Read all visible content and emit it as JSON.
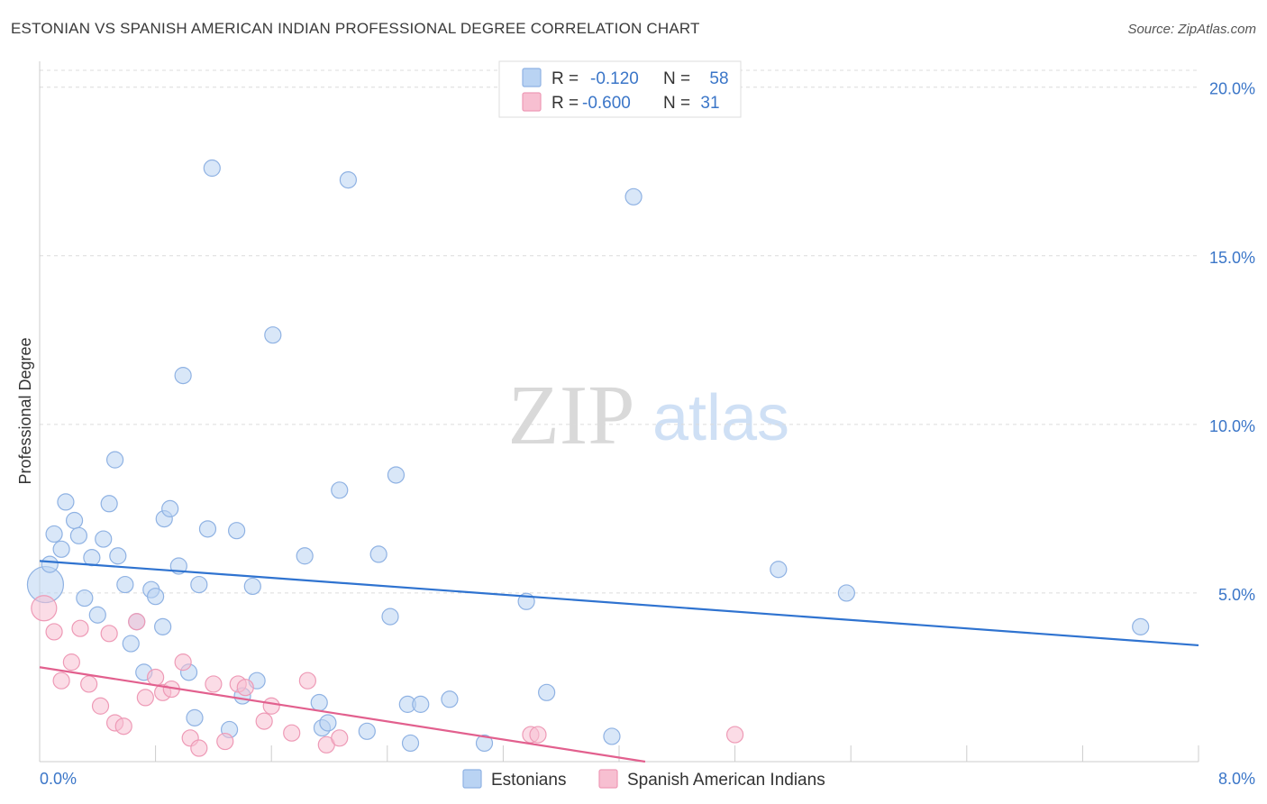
{
  "title": "ESTONIAN VS SPANISH AMERICAN INDIAN PROFESSIONAL DEGREE CORRELATION CHART",
  "source": "Source: ZipAtlas.com",
  "watermark": {
    "zip": "ZIP",
    "atlas": "atlas"
  },
  "colors": {
    "estonians_fill": "#b9d3f3",
    "estonians_stroke": "#8fb2e3",
    "estonians_line": "#2f73d0",
    "spanish_fill": "#f7bfd1",
    "spanish_stroke": "#ee9ab6",
    "spanish_line": "#e2608e",
    "accent": "#3b76c8"
  },
  "legend": {
    "r_label": "R =",
    "n_label": "N =",
    "rows": [
      {
        "r": "-0.120",
        "n": "58"
      },
      {
        "r": "-0.600",
        "n": "31"
      }
    ]
  },
  "chart_data": {
    "type": "scatter",
    "title": "ESTONIAN VS SPANISH AMERICAN INDIAN PROFESSIONAL DEGREE CORRELATION CHART",
    "xlabel": "",
    "ylabel": "Professional Degree",
    "xlim": [
      0,
      8
    ],
    "ylim": [
      0,
      20.5
    ],
    "x_tick_labels": [
      "0.0%",
      "8.0%"
    ],
    "y_ticks": [
      5,
      10,
      15,
      20
    ],
    "y_tick_labels": [
      "5.0%",
      "10.0%",
      "15.0%",
      "20.0%"
    ],
    "grid": true,
    "legend_position": "top-center",
    "series": [
      {
        "name": "Estonians",
        "r": -0.12,
        "n": 58,
        "trend": {
          "x0": 0,
          "y0": 5.95,
          "x1": 8.0,
          "y1": 3.45
        },
        "points": [
          [
            0.04,
            5.25,
            20
          ],
          [
            0.07,
            5.85,
            9
          ],
          [
            0.1,
            6.75,
            9
          ],
          [
            0.15,
            6.3,
            9
          ],
          [
            0.18,
            7.7,
            9
          ],
          [
            0.24,
            7.15,
            9
          ],
          [
            0.27,
            6.7,
            9
          ],
          [
            0.31,
            4.85,
            9
          ],
          [
            0.36,
            6.05,
            9
          ],
          [
            0.4,
            4.35,
            9
          ],
          [
            0.44,
            6.6,
            9
          ],
          [
            0.48,
            7.65,
            9
          ],
          [
            0.52,
            8.95,
            9
          ],
          [
            0.54,
            6.1,
            9
          ],
          [
            0.59,
            5.25,
            9
          ],
          [
            0.63,
            3.5,
            9
          ],
          [
            0.67,
            4.15,
            9
          ],
          [
            0.72,
            2.65,
            9
          ],
          [
            0.77,
            5.1,
            9
          ],
          [
            0.8,
            4.9,
            9
          ],
          [
            0.85,
            4.0,
            9
          ],
          [
            0.86,
            7.2,
            9
          ],
          [
            0.9,
            7.5,
            9
          ],
          [
            0.96,
            5.8,
            9
          ],
          [
            0.99,
            11.45,
            9
          ],
          [
            1.03,
            2.65,
            9
          ],
          [
            1.07,
            1.3,
            9
          ],
          [
            1.1,
            5.25,
            9
          ],
          [
            1.16,
            6.9,
            9
          ],
          [
            1.19,
            17.6,
            9
          ],
          [
            1.31,
            0.95,
            9
          ],
          [
            1.36,
            6.85,
            9
          ],
          [
            1.4,
            1.95,
            9
          ],
          [
            1.47,
            5.2,
            9
          ],
          [
            1.5,
            2.4,
            9
          ],
          [
            1.61,
            12.65,
            9
          ],
          [
            1.83,
            6.1,
            9
          ],
          [
            1.93,
            1.75,
            9
          ],
          [
            1.95,
            1.0,
            9
          ],
          [
            1.99,
            1.15,
            9
          ],
          [
            2.07,
            8.05,
            9
          ],
          [
            2.13,
            17.25,
            9
          ],
          [
            2.26,
            0.9,
            9
          ],
          [
            2.34,
            6.15,
            9
          ],
          [
            2.42,
            4.3,
            9
          ],
          [
            2.46,
            8.5,
            9
          ],
          [
            2.56,
            0.55,
            9
          ],
          [
            2.54,
            1.7,
            9
          ],
          [
            2.63,
            1.7,
            9
          ],
          [
            2.83,
            1.85,
            9
          ],
          [
            3.07,
            0.55,
            9
          ],
          [
            3.36,
            4.75,
            9
          ],
          [
            3.5,
            2.05,
            9
          ],
          [
            3.95,
            0.75,
            9
          ],
          [
            4.1,
            16.75,
            9
          ],
          [
            5.1,
            5.7,
            9
          ],
          [
            5.57,
            5.0,
            9
          ],
          [
            7.6,
            4.0,
            9
          ]
        ]
      },
      {
        "name": "Spanish American Indians",
        "r": -0.6,
        "n": 31,
        "trend": {
          "x0": 0,
          "y0": 2.8,
          "x1": 4.18,
          "y1": 0
        },
        "points": [
          [
            0.03,
            4.55,
            14
          ],
          [
            0.1,
            3.85,
            9
          ],
          [
            0.15,
            2.4,
            9
          ],
          [
            0.22,
            2.95,
            9
          ],
          [
            0.28,
            3.95,
            9
          ],
          [
            0.34,
            2.3,
            9
          ],
          [
            0.42,
            1.65,
            9
          ],
          [
            0.48,
            3.8,
            9
          ],
          [
            0.52,
            1.15,
            9
          ],
          [
            0.58,
            1.05,
            9
          ],
          [
            0.67,
            4.15,
            9
          ],
          [
            0.73,
            1.9,
            9
          ],
          [
            0.8,
            2.5,
            9
          ],
          [
            0.85,
            2.05,
            9
          ],
          [
            0.91,
            2.15,
            9
          ],
          [
            0.99,
            2.95,
            9
          ],
          [
            1.04,
            0.7,
            9
          ],
          [
            1.1,
            0.4,
            9
          ],
          [
            1.2,
            2.3,
            9
          ],
          [
            1.28,
            0.6,
            9
          ],
          [
            1.37,
            2.3,
            9
          ],
          [
            1.42,
            2.2,
            9
          ],
          [
            1.55,
            1.2,
            9
          ],
          [
            1.6,
            1.65,
            9
          ],
          [
            1.74,
            0.85,
            9
          ],
          [
            1.85,
            2.4,
            9
          ],
          [
            1.98,
            0.5,
            9
          ],
          [
            2.07,
            0.7,
            9
          ],
          [
            3.39,
            0.8,
            9
          ],
          [
            3.44,
            0.8,
            9
          ],
          [
            4.8,
            0.8,
            9
          ]
        ]
      }
    ]
  }
}
